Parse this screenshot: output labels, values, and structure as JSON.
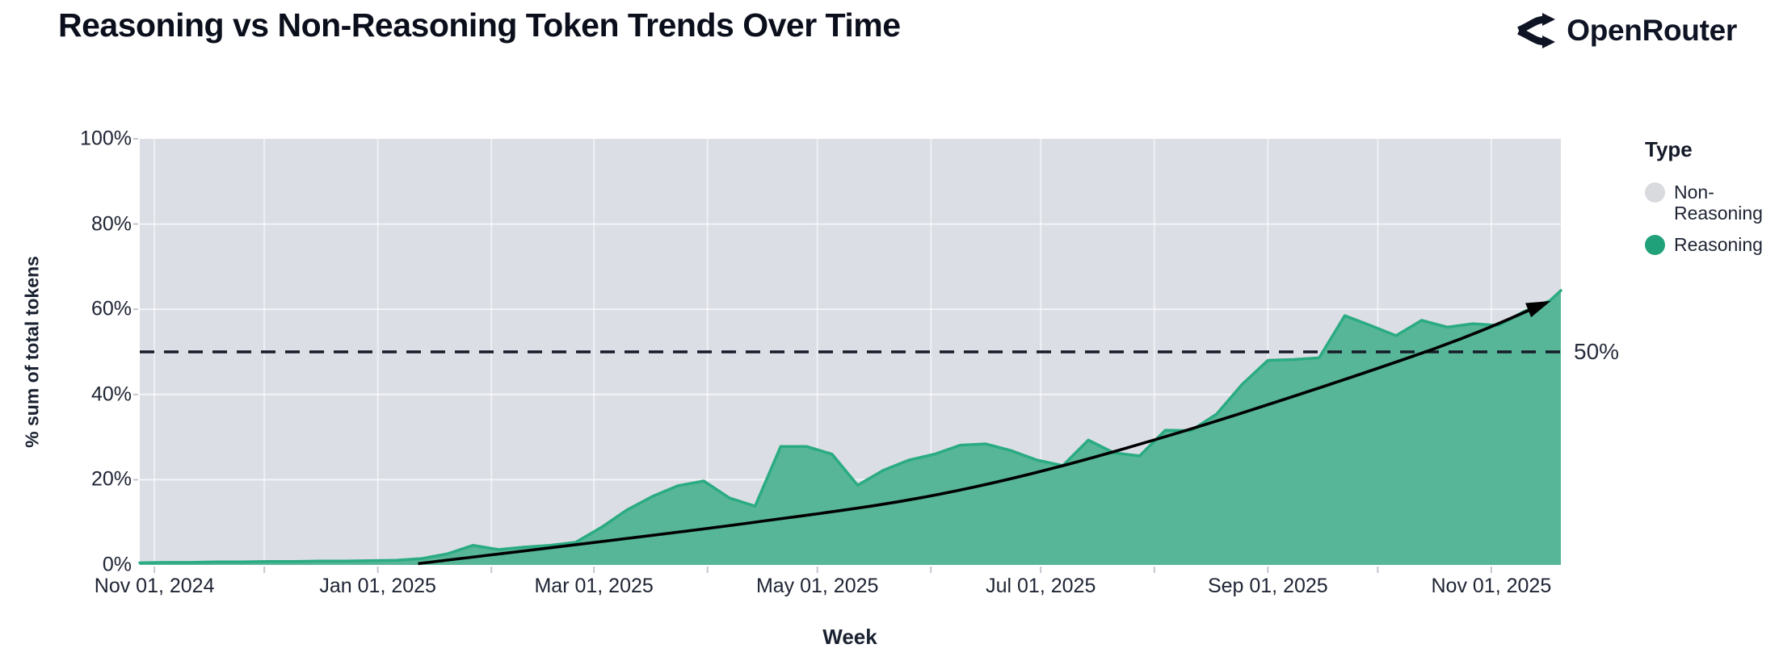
{
  "header": {
    "title": "Reasoning vs Non-Reasoning Token Trends Over Time",
    "brand": "OpenRouter"
  },
  "legend": {
    "title": "Type",
    "items": [
      {
        "label": "Non-Reasoning",
        "color": "#d8dade"
      },
      {
        "label": "Reasoning",
        "color": "#21a179"
      }
    ]
  },
  "chart_data": {
    "type": "area",
    "stacked_percent": true,
    "title": "Reasoning vs Non-Reasoning Token Trends Over Time",
    "xlabel": "Week",
    "ylabel": "% sum of total tokens",
    "ylim": [
      0,
      100
    ],
    "grid": "monthly vertical + 20% horizontal, white on gray panel",
    "legend_position": "right",
    "panel_color": "#dcdee6",
    "x": [
      "2024-10-28",
      "2024-11-04",
      "2024-11-11",
      "2024-11-18",
      "2024-11-25",
      "2024-12-02",
      "2024-12-09",
      "2024-12-16",
      "2024-12-23",
      "2024-12-30",
      "2025-01-06",
      "2025-01-13",
      "2025-01-20",
      "2025-01-27",
      "2025-02-03",
      "2025-02-10",
      "2025-02-17",
      "2025-02-24",
      "2025-03-03",
      "2025-03-10",
      "2025-03-17",
      "2025-03-24",
      "2025-03-31",
      "2025-04-07",
      "2025-04-14",
      "2025-04-21",
      "2025-04-28",
      "2025-05-05",
      "2025-05-12",
      "2025-05-19",
      "2025-05-26",
      "2025-06-02",
      "2025-06-09",
      "2025-06-16",
      "2025-06-23",
      "2025-06-30",
      "2025-07-07",
      "2025-07-14",
      "2025-07-21",
      "2025-07-28",
      "2025-08-04",
      "2025-08-11",
      "2025-08-18",
      "2025-08-25",
      "2025-09-01",
      "2025-09-08",
      "2025-09-15",
      "2025-09-22",
      "2025-09-29",
      "2025-10-06",
      "2025-10-13",
      "2025-10-20",
      "2025-10-27",
      "2025-11-03",
      "2025-11-10",
      "2025-11-17",
      "2025-11-20"
    ],
    "series": [
      {
        "name": "Reasoning",
        "fill": "#4fb392",
        "stroke": "#2aab81",
        "values": [
          0.5,
          0.6,
          0.6,
          0.7,
          0.7,
          0.8,
          0.8,
          0.9,
          0.9,
          1.0,
          1.1,
          1.5,
          2.6,
          4.6,
          3.6,
          4.2,
          4.6,
          5.3,
          8.8,
          12.9,
          16.1,
          18.6,
          19.7,
          15.7,
          13.8,
          27.8,
          27.8,
          26.0,
          18.7,
          22.2,
          24.6,
          26.0,
          28.1,
          28.4,
          26.8,
          24.6,
          23.3,
          29.3,
          26.3,
          25.6,
          31.6,
          31.5,
          35.4,
          42.4,
          48.0,
          48.2,
          48.6,
          58.5,
          56.2,
          53.8,
          57.4,
          55.8,
          56.6,
          56.2,
          59.5,
          62.0,
          64.4
        ]
      },
      {
        "name": "Non-Reasoning",
        "fill": "#dcdee6",
        "note": "remainder to 100% (background panel)"
      }
    ],
    "y_ticks": {
      "values": [
        0,
        20,
        40,
        60,
        80,
        100
      ],
      "labels": [
        "0%",
        "20%",
        "40%",
        "60%",
        "80%",
        "100%"
      ]
    },
    "x_ticks": {
      "dates": [
        "2024-11-01",
        "2025-01-01",
        "2025-03-01",
        "2025-05-01",
        "2025-07-01",
        "2025-09-01",
        "2025-11-01"
      ],
      "labels": [
        "Nov 01, 2024",
        "Jan 01, 2025",
        "Mar 01, 2025",
        "May 01, 2025",
        "Jul 01, 2025",
        "Sep 01, 2025",
        "Nov 01, 2025"
      ]
    },
    "reference_line": {
      "value": 50,
      "label": "50%",
      "style": "dashed black"
    },
    "trend_arrow": {
      "style": "solid black curve with arrowhead",
      "points": [
        [
          "2025-01-12",
          0.3
        ],
        [
          "2025-04-12",
          9.8
        ],
        [
          "2025-06-08",
          17.4
        ],
        [
          "2025-08-04",
          30.1
        ],
        [
          "2025-10-14",
          50.0
        ],
        [
          "2025-11-16",
          61.5
        ]
      ]
    }
  }
}
